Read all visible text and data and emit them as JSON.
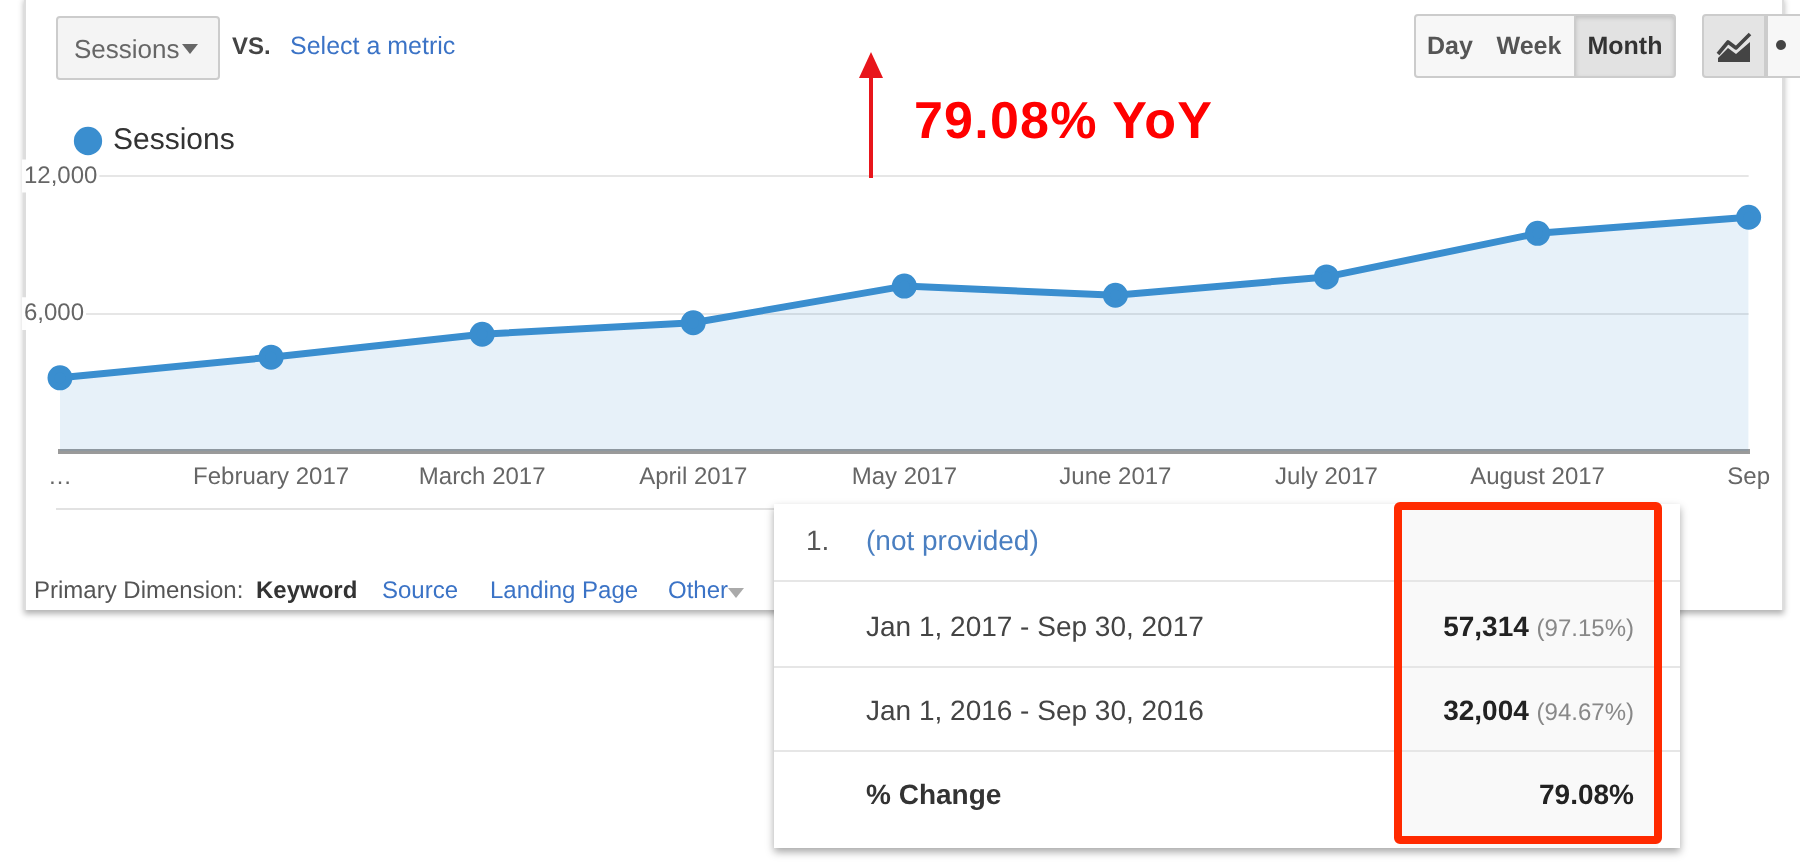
{
  "chart_data": {
    "type": "area",
    "categories": [
      "…",
      "February 2017",
      "March 2017",
      "April 2017",
      "May 2017",
      "June 2017",
      "July 2017",
      "August 2017",
      "Sep"
    ],
    "series": [
      {
        "name": "Sessions",
        "color": "#3a8ecf",
        "values": [
          3200,
          4100,
          5100,
          5600,
          7200,
          6800,
          7600,
          9500,
          10200
        ]
      }
    ],
    "ylim": [
      0,
      12000
    ],
    "yticks": [
      {
        "value": 6000,
        "label": "6,000"
      },
      {
        "value": 12000,
        "label": "12,000"
      }
    ],
    "grid": "y",
    "legend": "top left",
    "marker": "circle",
    "annotations": [
      "Sessions",
      "VS.",
      "Select a metric",
      "Day",
      "Week",
      "Month",
      "79.08% YoY",
      "Primary Dimension:",
      "Keyword",
      "Source",
      "Landing Page",
      "Other",
      "1.",
      "(not provided)",
      "Jan 1, 2017 - Sep 30, 2017",
      "57,314",
      "(97.15%)",
      "Jan 1, 2016 - Sep 30, 2016",
      "32,004",
      "(94.67%)",
      "% Change",
      "79.08%"
    ]
  }
}
